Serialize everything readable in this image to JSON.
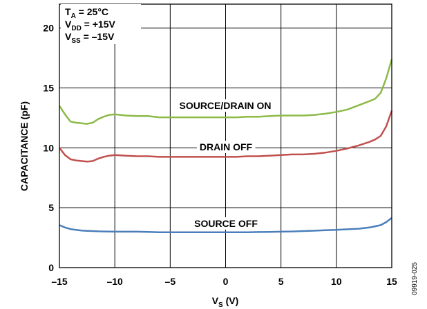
{
  "chart_data": {
    "type": "line",
    "xlabel": {
      "main": "V",
      "sub": "S",
      "unit": " (V)"
    },
    "ylabel": "CAPACITANCE (pF)",
    "xlim": [
      -15,
      15
    ],
    "ylim": [
      0,
      22
    ],
    "x_ticks": [
      -15,
      -10,
      -5,
      0,
      5,
      10,
      15
    ],
    "x_tick_labels": [
      "–15",
      "–10",
      "–5",
      "0",
      "5",
      "10",
      "15"
    ],
    "y_ticks": [
      0,
      5,
      10,
      15,
      20
    ],
    "y_tick_labels": [
      "0",
      "5",
      "10",
      "15",
      "20"
    ],
    "grid": true,
    "conditions": [
      {
        "main": "T",
        "sub": "A",
        "rest": " = 25°C"
      },
      {
        "main": "V",
        "sub": "DD",
        "rest": " = +15V"
      },
      {
        "main": "V",
        "sub": "SS",
        "rest": " = –15V"
      }
    ],
    "figure_id": "09919-025",
    "series": [
      {
        "name": "SOURCE/DRAIN ON",
        "color": "#8dba48",
        "x": [
          -15,
          -14.5,
          -14,
          -13.5,
          -13,
          -12.5,
          -12,
          -11.5,
          -11,
          -10.5,
          -10,
          -9,
          -8,
          -7,
          -6,
          -5,
          -4,
          -3,
          -2,
          -1,
          0,
          1,
          2,
          3,
          4,
          5,
          6,
          7,
          8,
          9,
          10,
          11,
          12,
          13,
          13.5,
          14,
          14.5,
          15
        ],
        "y": [
          13.5,
          12.8,
          12.2,
          12.1,
          12.05,
          12.0,
          12.1,
          12.4,
          12.6,
          12.75,
          12.8,
          12.7,
          12.65,
          12.65,
          12.55,
          12.55,
          12.55,
          12.55,
          12.55,
          12.55,
          12.55,
          12.55,
          12.6,
          12.6,
          12.65,
          12.7,
          12.7,
          12.7,
          12.75,
          12.85,
          13.0,
          13.2,
          13.55,
          13.9,
          14.1,
          14.6,
          15.8,
          17.4
        ]
      },
      {
        "name": "DRAIN OFF",
        "color": "#c0504d",
        "x": [
          -15,
          -14.5,
          -14,
          -13.5,
          -13,
          -12.5,
          -12,
          -11.5,
          -11,
          -10.5,
          -10,
          -9,
          -8,
          -7,
          -6,
          -5,
          -4,
          -3,
          -2,
          -1,
          0,
          1,
          2,
          3,
          4,
          5,
          6,
          7,
          8,
          9,
          10,
          11,
          12,
          13,
          13.5,
          14,
          14.5,
          15
        ],
        "y": [
          10.0,
          9.4,
          9.05,
          8.95,
          8.9,
          8.85,
          8.9,
          9.1,
          9.25,
          9.35,
          9.4,
          9.35,
          9.3,
          9.3,
          9.25,
          9.25,
          9.25,
          9.25,
          9.25,
          9.25,
          9.25,
          9.25,
          9.3,
          9.3,
          9.35,
          9.4,
          9.45,
          9.45,
          9.5,
          9.6,
          9.75,
          9.95,
          10.2,
          10.5,
          10.7,
          11.0,
          11.8,
          13.1
        ]
      },
      {
        "name": "SOURCE OFF",
        "color": "#4a7ebb",
        "x": [
          -15,
          -14.5,
          -14,
          -13.5,
          -13,
          -12.5,
          -12,
          -11.5,
          -11,
          -10.5,
          -10,
          -9,
          -8,
          -7,
          -6,
          -5,
          -4,
          -3,
          -2,
          -1,
          0,
          1,
          2,
          3,
          4,
          5,
          6,
          7,
          8,
          9,
          10,
          11,
          12,
          13,
          13.5,
          14,
          14.5,
          15
        ],
        "y": [
          3.55,
          3.35,
          3.22,
          3.15,
          3.1,
          3.07,
          3.05,
          3.03,
          3.02,
          3.01,
          3.0,
          3.0,
          3.0,
          2.98,
          2.95,
          2.95,
          2.95,
          2.95,
          2.95,
          2.95,
          2.95,
          2.95,
          2.95,
          2.97,
          2.98,
          3.0,
          3.02,
          3.05,
          3.08,
          3.12,
          3.15,
          3.2,
          3.25,
          3.35,
          3.45,
          3.55,
          3.8,
          4.15
        ]
      }
    ]
  }
}
